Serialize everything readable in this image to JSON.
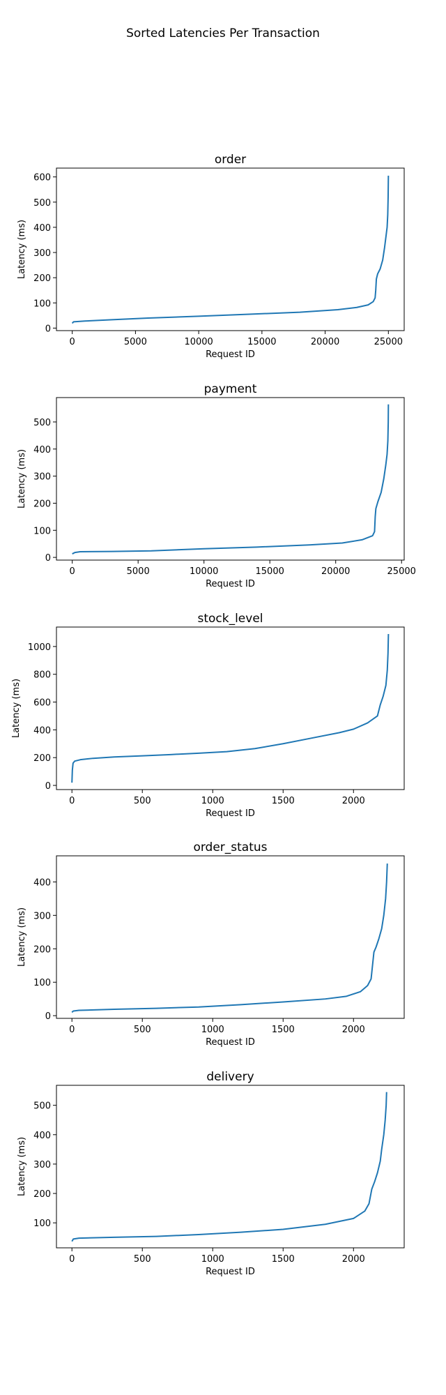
{
  "suptitle": "Sorted Latencies Per Transaction",
  "colors": {
    "line": "#1f77b4",
    "axes": "#000000",
    "background": "#ffffff"
  },
  "chart_data": [
    {
      "type": "line",
      "title": "order",
      "xlabel": "Request ID",
      "ylabel": "Latency (ms)",
      "xlim": [
        -1250,
        26250
      ],
      "ylim": [
        -10,
        635
      ],
      "xticks": [
        0,
        5000,
        10000,
        15000,
        20000,
        25000
      ],
      "yticks": [
        0,
        100,
        200,
        300,
        400,
        500,
        600
      ],
      "grid": false,
      "x": [
        0,
        100,
        1000,
        3000,
        6000,
        10000,
        14000,
        18000,
        21000,
        22500,
        23400,
        23800,
        23950,
        24000,
        24050,
        24150,
        24350,
        24550,
        24700,
        24800,
        24900,
        24950,
        24980,
        25000
      ],
      "y": [
        19,
        25,
        28,
        33,
        40,
        47,
        55,
        63,
        73,
        82,
        92,
        105,
        120,
        150,
        195,
        215,
        235,
        270,
        320,
        360,
        400,
        450,
        520,
        605
      ]
    },
    {
      "type": "line",
      "title": "payment",
      "xlabel": "Request ID",
      "ylabel": "Latency (ms)",
      "xlim": [
        -1200,
        25200
      ],
      "ylim": [
        -10,
        590
      ],
      "xticks": [
        0,
        5000,
        10000,
        15000,
        20000,
        25000
      ],
      "yticks": [
        0,
        100,
        200,
        300,
        400,
        500
      ],
      "grid": false,
      "x": [
        0,
        200,
        600,
        3000,
        6000,
        10000,
        14000,
        18000,
        20500,
        22000,
        22800,
        22950,
        23000,
        23050,
        23200,
        23450,
        23650,
        23800,
        23900,
        23960,
        23990,
        24000
      ],
      "y": [
        13,
        18,
        21,
        22,
        24,
        32,
        38,
        46,
        53,
        65,
        80,
        95,
        150,
        180,
        205,
        240,
        290,
        340,
        380,
        430,
        500,
        565
      ]
    },
    {
      "type": "line",
      "title": "stock_level",
      "xlabel": "Request ID",
      "ylabel": "Latency (ms)",
      "xlim": [
        -110,
        2360
      ],
      "ylim": [
        -30,
        1140
      ],
      "xticks": [
        0,
        500,
        1000,
        1500,
        2000
      ],
      "yticks": [
        0,
        200,
        400,
        600,
        800,
        1000
      ],
      "grid": false,
      "x": [
        0,
        3,
        8,
        20,
        60,
        150,
        300,
        500,
        700,
        900,
        1100,
        1300,
        1500,
        1700,
        1900,
        2000,
        2100,
        2170,
        2190,
        2210,
        2230,
        2240,
        2245,
        2248
      ],
      "y": [
        20,
        110,
        160,
        175,
        185,
        195,
        205,
        213,
        222,
        232,
        243,
        265,
        300,
        340,
        380,
        405,
        450,
        500,
        580,
        640,
        720,
        830,
        950,
        1090
      ]
    },
    {
      "type": "line",
      "title": "order_status",
      "xlabel": "Request ID",
      "ylabel": "Latency (ms)",
      "xlim": [
        -110,
        2360
      ],
      "ylim": [
        -8,
        478
      ],
      "xticks": [
        0,
        500,
        1000,
        1500,
        2000
      ],
      "yticks": [
        0,
        100,
        200,
        300,
        400
      ],
      "grid": false,
      "x": [
        0,
        10,
        50,
        300,
        600,
        900,
        1200,
        1500,
        1800,
        1950,
        2050,
        2100,
        2125,
        2135,
        2145,
        2160,
        2180,
        2200,
        2215,
        2228,
        2235,
        2240
      ],
      "y": [
        10,
        14,
        16,
        19,
        22,
        26,
        33,
        41,
        50,
        58,
        72,
        90,
        110,
        150,
        190,
        205,
        230,
        260,
        300,
        350,
        400,
        455
      ]
    },
    {
      "type": "line",
      "title": "delivery",
      "xlabel": "Request ID",
      "ylabel": "Latency (ms)",
      "xlim": [
        -110,
        2360
      ],
      "ylim": [
        15,
        568
      ],
      "xticks": [
        0,
        500,
        1000,
        1500,
        2000
      ],
      "yticks": [
        100,
        200,
        300,
        400,
        500
      ],
      "grid": false,
      "x": [
        0,
        10,
        50,
        300,
        600,
        900,
        1200,
        1500,
        1800,
        2000,
        2080,
        2110,
        2130,
        2150,
        2170,
        2190,
        2200,
        2215,
        2225,
        2232,
        2235
      ],
      "y": [
        37,
        45,
        48,
        51,
        54,
        60,
        68,
        78,
        95,
        115,
        140,
        165,
        215,
        240,
        270,
        310,
        350,
        400,
        450,
        500,
        545
      ]
    }
  ]
}
